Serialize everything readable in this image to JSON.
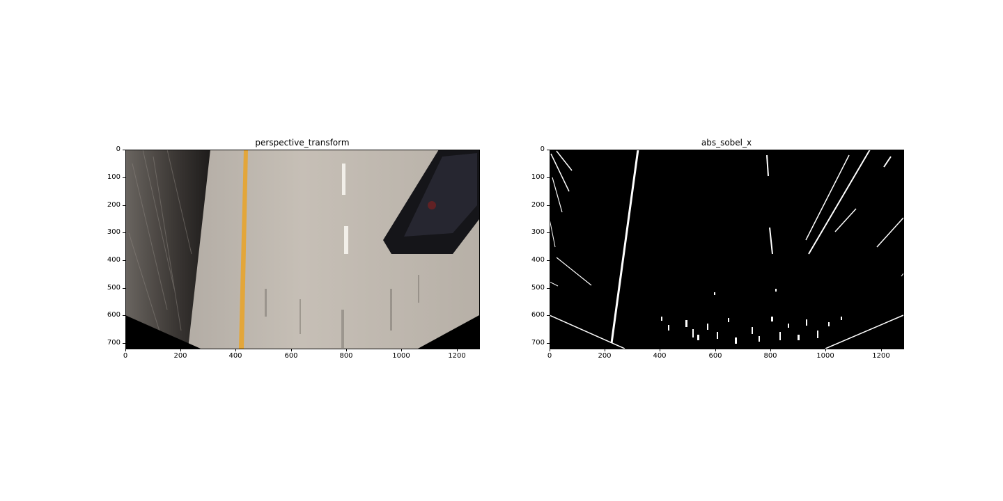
{
  "figure": {
    "panels": [
      {
        "id": "left",
        "title": "perspective_transform",
        "image": "perspective-warped-road-photo",
        "xticks": [
          "0",
          "200",
          "400",
          "600",
          "800",
          "1000",
          "1200"
        ],
        "yticks": [
          "0",
          "100",
          "200",
          "300",
          "400",
          "500",
          "600",
          "700"
        ]
      },
      {
        "id": "right",
        "title": "abs_sobel_x",
        "image": "binary-edge-mask",
        "xticks": [
          "0",
          "200",
          "400",
          "600",
          "800",
          "1000",
          "1200"
        ],
        "yticks": [
          "0",
          "100",
          "200",
          "300",
          "400",
          "500",
          "600",
          "700"
        ]
      }
    ]
  },
  "colors": {
    "road": "#bdb5ab",
    "lane_yellow": "#e3a63a",
    "wall_dark": "#2b2826",
    "mask_bg": "#000000",
    "mask_fg": "#ffffff"
  }
}
